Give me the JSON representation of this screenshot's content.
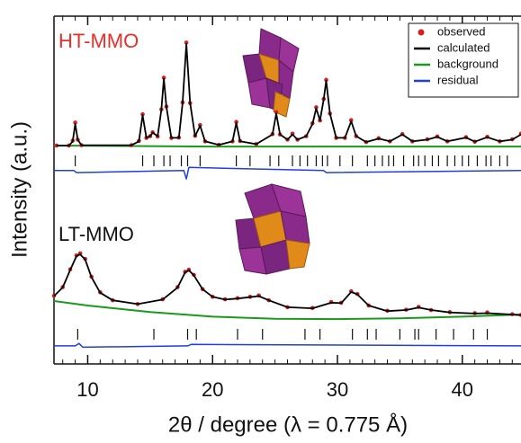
{
  "chart_data": {
    "type": "line",
    "xlabel": "2θ / degree (λ = 0.775 Å)",
    "ylabel": "Intensity (a.u.)",
    "xlim": [
      7.3,
      44.7
    ],
    "xticks": [
      10,
      20,
      30,
      40
    ],
    "xminor_step": 1,
    "ylim": [
      0,
      100
    ],
    "legend_position": "upper right",
    "legend": [
      {
        "name": "observed",
        "color": "#d42020"
      },
      {
        "name": "calculated",
        "color": "#000000"
      },
      {
        "name": "background",
        "color": "#1a9a1a"
      },
      {
        "name": "residual",
        "color": "#1f3fe0"
      }
    ],
    "patterns": [
      {
        "label": "HT-MMO",
        "label_color": "#e8302a",
        "x": [
          7.5,
          8.5,
          8.8,
          9.0,
          9.2,
          9.5,
          13.5,
          14.1,
          14.4,
          14.7,
          15.0,
          15.2,
          15.6,
          15.9,
          16.1,
          16.3,
          16.7,
          17.3,
          17.6,
          17.9,
          18.2,
          18.6,
          19.0,
          19.4,
          20.5,
          21.6,
          21.9,
          22.2,
          23.5,
          24.8,
          25.1,
          25.4,
          26.0,
          26.4,
          26.8,
          27.5,
          28.0,
          28.3,
          28.6,
          28.9,
          29.1,
          29.4,
          29.9,
          30.6,
          31.1,
          31.5,
          32.3,
          33.3,
          34.2,
          35.2,
          36.0,
          37.2,
          38.0,
          38.8,
          40.3,
          41.0,
          42.0,
          43.0,
          44.0,
          44.7
        ],
        "observed": [
          62.8,
          62.8,
          64.2,
          69.4,
          64.5,
          62.9,
          62.9,
          64.1,
          71.8,
          65.0,
          65.5,
          66.6,
          65.4,
          73.2,
          82.3,
          74.0,
          65.0,
          65.1,
          75.2,
          92.4,
          75.0,
          65.6,
          68.7,
          64.0,
          63.0,
          64.0,
          69.6,
          64.1,
          63.2,
          66.1,
          72.4,
          66.0,
          64.5,
          66.2,
          64.5,
          65.5,
          69.2,
          73.8,
          70.0,
          76.2,
          81.7,
          72.0,
          65.0,
          65.0,
          70.1,
          65.5,
          63.8,
          64.9,
          64.0,
          66.1,
          64.0,
          64.6,
          65.4,
          64.0,
          65.2,
          63.9,
          65.3,
          64.0,
          64.6,
          66.2
        ],
        "calculated": [
          62.8,
          62.8,
          64.0,
          69.0,
          64.5,
          62.9,
          62.9,
          64.0,
          71.5,
          65.0,
          65.5,
          66.5,
          65.5,
          73.0,
          82.0,
          74.0,
          65.0,
          65.0,
          75.0,
          92.0,
          75.0,
          65.5,
          68.5,
          64.0,
          63.0,
          64.0,
          69.3,
          64.0,
          63.2,
          66.0,
          72.0,
          66.0,
          64.5,
          66.0,
          64.5,
          65.5,
          69.0,
          73.5,
          70.0,
          76.0,
          81.4,
          72.0,
          65.0,
          65.0,
          69.8,
          65.5,
          63.8,
          64.8,
          64.0,
          66.0,
          64.0,
          64.5,
          65.3,
          64.0,
          65.1,
          63.9,
          65.2,
          64.0,
          64.5,
          66.0
        ],
        "background_x": [
          7.3,
          20,
          44.7
        ],
        "background": [
          62.8,
          62.5,
          62.5
        ],
        "residual_x": [
          7.3,
          8.9,
          9.1,
          17.7,
          17.9,
          18.1,
          28.9,
          29.1,
          44.7
        ],
        "residual": [
          55.6,
          55.6,
          55.0,
          55.6,
          53.2,
          56.5,
          55.6,
          55.0,
          55.6
        ],
        "reflections": [
          9.0,
          14.4,
          15.3,
          16.1,
          16.6,
          17.5,
          18.0,
          19.0,
          21.9,
          23.0,
          24.6,
          25.3,
          26.4,
          27.0,
          27.6,
          28.3,
          28.8,
          29.2,
          30.2,
          31.2,
          32.4,
          33.0,
          33.6,
          34.1,
          34.5,
          35.3,
          36.1,
          36.5,
          37.0,
          37.6,
          38.1,
          38.8,
          39.4,
          40.0,
          40.5,
          41.2,
          41.9,
          42.3,
          43.0,
          43.6
        ]
      },
      {
        "label": "LT-MMO",
        "label_color": "#111111",
        "x": [
          7.3,
          8.0,
          8.6,
          9.1,
          9.4,
          9.8,
          10.3,
          11.0,
          12.0,
          14.0,
          16.0,
          17.2,
          17.8,
          18.1,
          18.5,
          19.2,
          20.0,
          21.0,
          22.0,
          23.0,
          23.7,
          24.5,
          26.0,
          28.0,
          29.5,
          30.3,
          31.1,
          31.6,
          32.5,
          34.0,
          35.5,
          36.5,
          37.5,
          39.0,
          41.0,
          42.0,
          44.0,
          44.7
        ],
        "observed": [
          19.6,
          22.1,
          27.2,
          31.2,
          31.8,
          30.2,
          25.1,
          20.6,
          18.3,
          17.2,
          18.6,
          22.1,
          26.5,
          27.1,
          25.6,
          21.5,
          19.3,
          18.6,
          18.9,
          19.3,
          19.7,
          18.3,
          16.3,
          16.1,
          17.8,
          17.6,
          20.9,
          20.1,
          16.8,
          15.3,
          15.6,
          16.4,
          15.5,
          14.9,
          14.6,
          14.8,
          14.3,
          14.1
        ],
        "calculated": [
          19.5,
          22.0,
          27.0,
          31.0,
          31.5,
          30.0,
          25.0,
          20.5,
          18.3,
          17.2,
          18.5,
          22.0,
          26.3,
          26.9,
          25.5,
          21.5,
          19.3,
          18.5,
          18.8,
          19.2,
          19.5,
          18.3,
          16.3,
          16.0,
          17.6,
          17.5,
          20.7,
          20.0,
          16.8,
          15.2,
          15.5,
          16.2,
          15.5,
          14.8,
          14.5,
          14.6,
          14.2,
          14.0
        ],
        "background_x": [
          7.3,
          10,
          15,
          20,
          25,
          30,
          35,
          40,
          44.7
        ],
        "background": [
          18.1,
          16.8,
          14.9,
          13.6,
          13.0,
          12.9,
          13.1,
          13.6,
          14.2
        ],
        "residual_x": [
          7.3,
          9.0,
          9.3,
          9.6,
          18.0,
          18.3,
          44.7
        ],
        "residual": [
          5.2,
          5.2,
          5.9,
          4.8,
          5.2,
          5.6,
          5.2
        ],
        "reflections": [
          9.2,
          15.3,
          18.0,
          18.7,
          22.0,
          24.0,
          27.4,
          28.6,
          31.2,
          32.4,
          33.1,
          35.0,
          36.2,
          36.5,
          37.9,
          39.3,
          40.9,
          42.0
        ]
      }
    ]
  }
}
